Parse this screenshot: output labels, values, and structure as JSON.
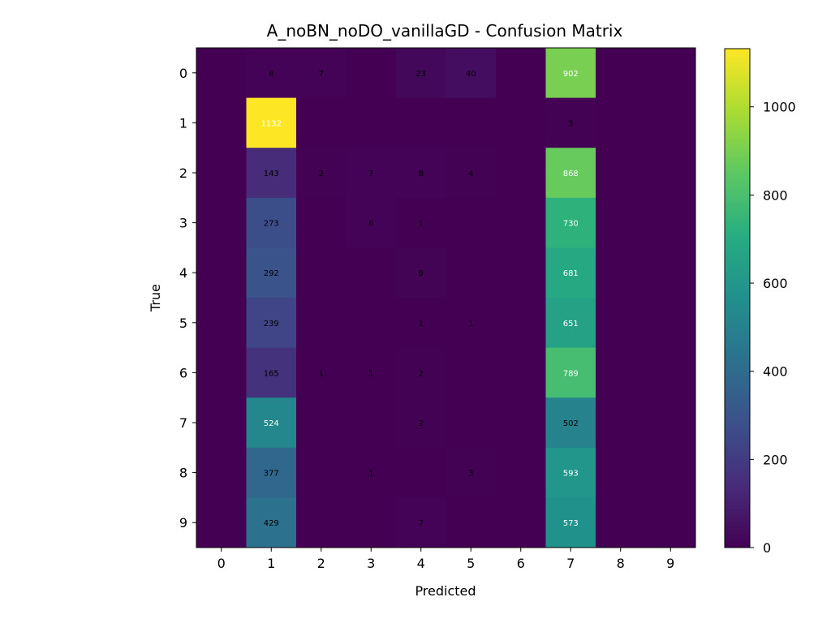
{
  "chart_data": {
    "type": "heatmap",
    "title": "A_noBN_noDO_vanillaGD - Confusion Matrix",
    "xlabel": "Predicted",
    "ylabel": "True",
    "x_categories": [
      "0",
      "1",
      "2",
      "3",
      "4",
      "5",
      "6",
      "7",
      "8",
      "9"
    ],
    "y_categories": [
      "0",
      "1",
      "2",
      "3",
      "4",
      "5",
      "6",
      "7",
      "8",
      "9"
    ],
    "matrix": [
      [
        0,
        8,
        7,
        0,
        23,
        40,
        0,
        902,
        0,
        0
      ],
      [
        0,
        1132,
        0,
        0,
        0,
        0,
        0,
        3,
        0,
        0
      ],
      [
        0,
        143,
        2,
        7,
        8,
        4,
        0,
        868,
        0,
        0
      ],
      [
        0,
        273,
        0,
        6,
        1,
        0,
        0,
        730,
        0,
        0
      ],
      [
        0,
        292,
        0,
        0,
        9,
        0,
        0,
        681,
        0,
        0
      ],
      [
        0,
        239,
        0,
        0,
        1,
        1,
        0,
        651,
        0,
        0
      ],
      [
        0,
        165,
        1,
        1,
        2,
        0,
        0,
        789,
        0,
        0
      ],
      [
        0,
        524,
        0,
        0,
        2,
        0,
        0,
        502,
        0,
        0
      ],
      [
        0,
        377,
        0,
        1,
        0,
        3,
        0,
        593,
        0,
        0
      ],
      [
        0,
        429,
        0,
        0,
        7,
        0,
        0,
        573,
        0,
        0
      ]
    ],
    "hide_zero_labels": true,
    "colormap": "viridis",
    "vmin": 0,
    "vmax": 1132,
    "colorbar_ticks": [
      0,
      200,
      400,
      600,
      800,
      1000
    ],
    "colorbar_tick_labels": [
      "0",
      "200",
      "400",
      "600",
      "800",
      "1000"
    ],
    "label_colors": {
      "light_cell_text": "#000000",
      "dark_cell_text": "#ffffff"
    }
  }
}
